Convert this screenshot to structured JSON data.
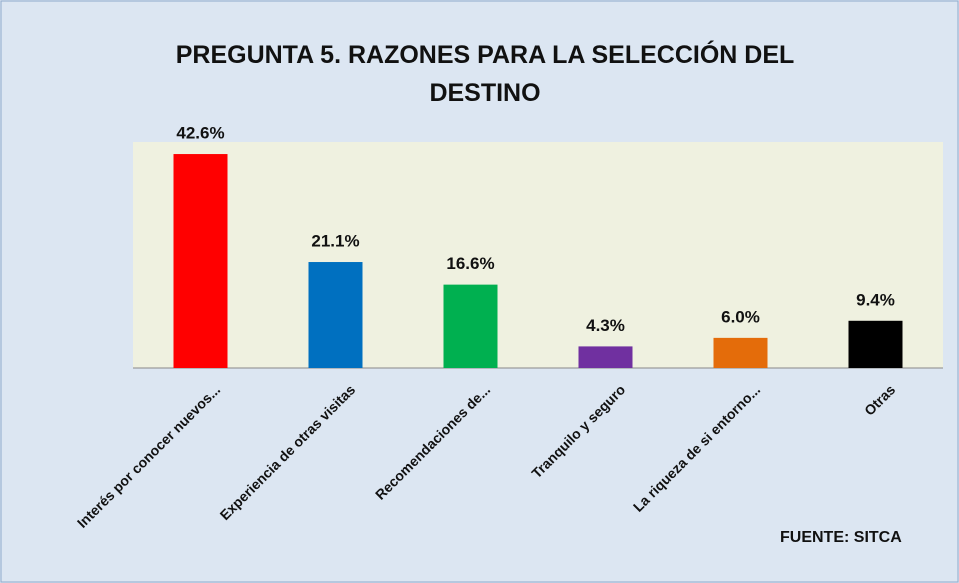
{
  "chart_data": {
    "type": "bar",
    "title": "PREGUNTA 5. RAZONES PARA LA SELECCIÓN DEL DESTINO",
    "categories": [
      "Interés por conocer nuevos...",
      "Experiencia de otras visitas",
      "Recomendaciones de...",
      "Tranquilo y seguro",
      "La riqueza de si entorno...",
      "Otras"
    ],
    "values": [
      42.6,
      21.1,
      16.6,
      4.3,
      6.0,
      9.4
    ],
    "value_labels": [
      "42.6%",
      "21.1%",
      "16.6%",
      "4.3%",
      "6.0%",
      "9.4%"
    ],
    "colors": [
      "#ff0000",
      "#0070c0",
      "#00b050",
      "#7030a0",
      "#e46c0a",
      "#000000"
    ],
    "ylim": [
      0,
      45
    ],
    "source": "FUENTE: SITCA"
  }
}
